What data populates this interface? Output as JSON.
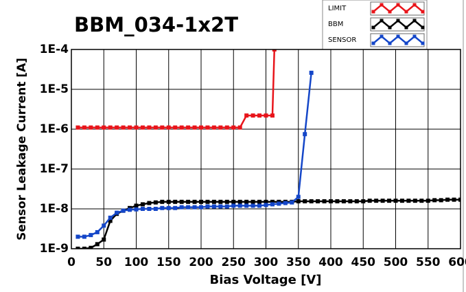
{
  "chart_data": {
    "type": "line",
    "title": "BBM_034-1x2T",
    "xlabel": "Bias Voltage [V]",
    "ylabel": "Sensor Leakage Current [A]",
    "xlim": [
      0,
      600
    ],
    "xticks": [
      0,
      50,
      100,
      150,
      200,
      250,
      300,
      350,
      400,
      450,
      500,
      550,
      600
    ],
    "ylim": [
      1e-09,
      0.0001
    ],
    "log_y": true,
    "grid": true,
    "yticks": [
      {
        "value": 1e-09,
        "label": "1E-9"
      },
      {
        "value": 1e-08,
        "label": "1E-8"
      },
      {
        "value": 1e-07,
        "label": "1E-7"
      },
      {
        "value": 1e-06,
        "label": "1E-6"
      },
      {
        "value": 1e-05,
        "label": "1E-5"
      },
      {
        "value": 0.0001,
        "label": "1E-4"
      }
    ],
    "series": [
      {
        "name": "LIMIT",
        "color": "#e8141a",
        "x": [
          10,
          20,
          30,
          40,
          50,
          60,
          70,
          80,
          90,
          100,
          110,
          120,
          130,
          140,
          150,
          160,
          170,
          180,
          190,
          200,
          210,
          220,
          230,
          240,
          250,
          260,
          270,
          280,
          290,
          300,
          310,
          313
        ],
        "values": [
          1.1e-06,
          1.1e-06,
          1.1e-06,
          1.1e-06,
          1.1e-06,
          1.1e-06,
          1.1e-06,
          1.1e-06,
          1.1e-06,
          1.1e-06,
          1.1e-06,
          1.1e-06,
          1.1e-06,
          1.1e-06,
          1.1e-06,
          1.1e-06,
          1.1e-06,
          1.1e-06,
          1.1e-06,
          1.1e-06,
          1.1e-06,
          1.1e-06,
          1.1e-06,
          1.1e-06,
          1.1e-06,
          1.1e-06,
          2.2e-06,
          2.2e-06,
          2.2e-06,
          2.2e-06,
          2.2e-06,
          0.0001
        ]
      },
      {
        "name": "BBM",
        "color": "#000000",
        "x": [
          10,
          20,
          30,
          40,
          50,
          60,
          70,
          80,
          90,
          100,
          110,
          120,
          130,
          140,
          150,
          160,
          170,
          180,
          190,
          200,
          210,
          220,
          230,
          240,
          250,
          260,
          270,
          280,
          290,
          300,
          310,
          320,
          330,
          340,
          350,
          360,
          370,
          380,
          390,
          400,
          410,
          420,
          430,
          440,
          450,
          460,
          470,
          480,
          490,
          500,
          510,
          520,
          530,
          540,
          550,
          560,
          570,
          580,
          590,
          600
        ],
        "values": [
          1e-09,
          1e-09,
          1.05e-09,
          1.3e-09,
          1.7e-09,
          5e-09,
          7.5e-09,
          9e-09,
          1.05e-08,
          1.2e-08,
          1.3e-08,
          1.4e-08,
          1.45e-08,
          1.5e-08,
          1.5e-08,
          1.5e-08,
          1.5e-08,
          1.5e-08,
          1.5e-08,
          1.5e-08,
          1.5e-08,
          1.5e-08,
          1.5e-08,
          1.5e-08,
          1.5e-08,
          1.5e-08,
          1.5e-08,
          1.5e-08,
          1.5e-08,
          1.5e-08,
          1.5e-08,
          1.5e-08,
          1.5e-08,
          1.5e-08,
          1.55e-08,
          1.55e-08,
          1.55e-08,
          1.55e-08,
          1.55e-08,
          1.55e-08,
          1.55e-08,
          1.55e-08,
          1.55e-08,
          1.55e-08,
          1.55e-08,
          1.6e-08,
          1.6e-08,
          1.6e-08,
          1.6e-08,
          1.6e-08,
          1.6e-08,
          1.6e-08,
          1.6e-08,
          1.6e-08,
          1.6e-08,
          1.65e-08,
          1.65e-08,
          1.7e-08,
          1.7e-08,
          1.7e-08
        ]
      },
      {
        "name": "SENSOR",
        "color": "#1446c8",
        "x": [
          10,
          20,
          30,
          40,
          50,
          60,
          70,
          80,
          90,
          100,
          110,
          120,
          130,
          140,
          150,
          160,
          170,
          180,
          190,
          200,
          210,
          220,
          230,
          240,
          250,
          260,
          270,
          280,
          290,
          300,
          310,
          320,
          330,
          340,
          350,
          360,
          370
        ],
        "values": [
          2e-09,
          2e-09,
          2.2e-09,
          2.6e-09,
          3.8e-09,
          6e-09,
          8e-09,
          9e-09,
          9.5e-09,
          9.7e-09,
          1e-08,
          1e-08,
          1e-08,
          1.05e-08,
          1.05e-08,
          1.05e-08,
          1.1e-08,
          1.1e-08,
          1.1e-08,
          1.1e-08,
          1.15e-08,
          1.15e-08,
          1.15e-08,
          1.15e-08,
          1.2e-08,
          1.2e-08,
          1.2e-08,
          1.2e-08,
          1.2e-08,
          1.25e-08,
          1.3e-08,
          1.35e-08,
          1.4e-08,
          1.45e-08,
          2e-08,
          7.5e-07,
          2.6e-05
        ]
      }
    ]
  }
}
